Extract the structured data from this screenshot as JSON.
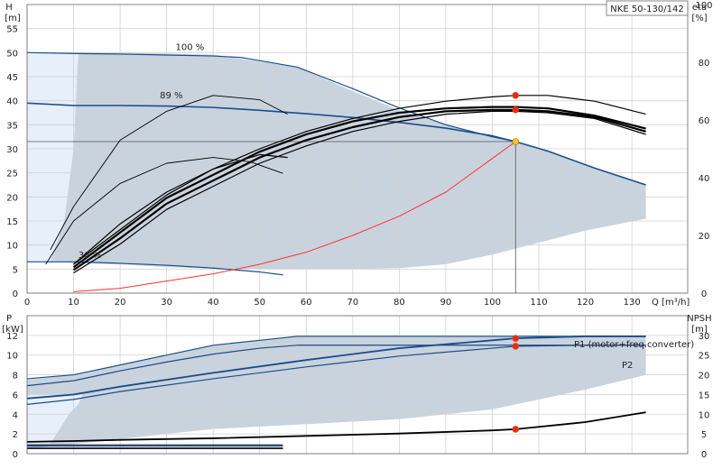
{
  "title_box": "NKE 50-130/142",
  "chart_data": [
    {
      "type": "line",
      "title": "NKE 50-130/142",
      "xlabel": "Q [m³/h]",
      "ylabel": "H [m]",
      "ylabel_line1": "H",
      "ylabel_line2": "[m]",
      "y2label": "eta [%]",
      "y2label_line1": "eta",
      "y2label_line2": "[%]",
      "xlim": [
        0,
        142
      ],
      "ylim": [
        0,
        60
      ],
      "y2lim": [
        0,
        100
      ],
      "xticks": [
        0,
        10,
        20,
        30,
        40,
        50,
        60,
        70,
        80,
        90,
        100,
        110,
        120,
        130
      ],
      "yticks": [
        0,
        5,
        10,
        15,
        20,
        25,
        30,
        35,
        40,
        45,
        50,
        55
      ],
      "y2ticks": [
        0,
        20,
        40,
        60,
        80,
        100
      ],
      "grid": true,
      "annotations": [
        "100 %",
        "89 %",
        "36 %"
      ],
      "operating_point": {
        "x": 105,
        "y": 31.5
      },
      "series": [
        {
          "kind": "region",
          "color": "#c8d3de",
          "x": [
            11,
            20,
            40,
            58,
            70,
            80,
            90,
            100,
            105,
            112,
            122,
            133,
            133,
            120,
            110,
            100,
            90,
            80,
            70,
            55,
            45,
            30,
            20,
            10,
            5
          ],
          "y": [
            50,
            50,
            49.6,
            47,
            42,
            38,
            35,
            32.5,
            31.5,
            29.5,
            26,
            22.5,
            15.5,
            13,
            10.5,
            8,
            6,
            5.2,
            5,
            5,
            5,
            5.4,
            6,
            6.3,
            6.5
          ]
        },
        {
          "kind": "region",
          "color": "#e6effa",
          "x": [
            0,
            11,
            10,
            8,
            5,
            0
          ],
          "y": [
            50,
            50,
            30,
            15,
            6.5,
            6.5
          ]
        },
        {
          "kind": "curve",
          "color": "#1c4c8c",
          "width": 1.2,
          "x": [
            0,
            11,
            20,
            30,
            40,
            46,
            58
          ],
          "y": [
            50,
            49.8,
            49.7,
            49.5,
            49.3,
            49,
            47
          ]
        },
        {
          "kind": "curve",
          "color": "#1c4c8c",
          "width": 1.2,
          "x": [
            58,
            70,
            80,
            90,
            100,
            105
          ],
          "y": [
            47,
            42.5,
            38.5,
            35,
            32.5,
            31.5
          ]
        },
        {
          "kind": "curve",
          "color": "#1c4c8c",
          "width": 1.6,
          "x": [
            0,
            10,
            20,
            30,
            40,
            50,
            60,
            70,
            80,
            90,
            100,
            105,
            112,
            122,
            133
          ],
          "y": [
            39.5,
            39,
            39,
            38.9,
            38.6,
            38,
            37.3,
            36.5,
            35.5,
            34.3,
            32.7,
            31.5,
            29.5,
            26,
            22.5
          ]
        },
        {
          "kind": "curve",
          "color": "#1c4c8c",
          "width": 1.2,
          "x": [
            0,
            10,
            20,
            30,
            40,
            45,
            50,
            55
          ],
          "y": [
            6.5,
            6.5,
            6.2,
            5.8,
            5.2,
            4.8,
            4.4,
            3.8
          ]
        },
        {
          "kind": "curve",
          "color": "#ff3333",
          "width": 1,
          "x": [
            10,
            20,
            30,
            40,
            50,
            60,
            70,
            80,
            90,
            100,
            105
          ],
          "y": [
            0.3,
            1,
            2.5,
            4,
            6,
            8.5,
            12,
            16,
            21,
            28,
            31.5
          ]
        },
        {
          "kind": "curve",
          "color": "#555555",
          "width": 0.8,
          "x": [
            105,
            105
          ],
          "y": [
            0,
            31.5
          ]
        },
        {
          "kind": "curve",
          "color": "#555555",
          "width": 0.8,
          "x": [
            0,
            105
          ],
          "y": [
            31.5,
            31.5
          ]
        },
        {
          "kind": "curve",
          "color": "#000000",
          "width": 2.2,
          "axis": "right",
          "x": [
            10,
            20,
            30,
            40,
            50,
            60,
            70,
            80,
            90,
            100,
            105,
            112,
            122,
            133
          ],
          "y": [
            9,
            21,
            33,
            41,
            49,
            55,
            59.5,
            62.5,
            64,
            64.5,
            64.5,
            64,
            61.5,
            57
          ]
        },
        {
          "kind": "curve",
          "color": "#000000",
          "width": 2.2,
          "axis": "right",
          "x": [
            10,
            20,
            30,
            40,
            50,
            60,
            70,
            80,
            90,
            100,
            105,
            112,
            122,
            133
          ],
          "y": [
            8,
            19,
            31,
            39,
            47,
            53,
            57.5,
            61,
            63,
            63.5,
            63.5,
            63,
            61,
            56
          ]
        },
        {
          "kind": "curve",
          "color": "#000000",
          "width": 1.2,
          "axis": "right",
          "x": [
            10,
            20,
            30,
            40,
            50,
            60,
            70,
            80,
            90,
            100,
            105,
            112,
            122,
            133
          ],
          "y": [
            10,
            22,
            34,
            43,
            50,
            56,
            60.5,
            64,
            66.5,
            68,
            68.5,
            68.5,
            66.5,
            62
          ]
        },
        {
          "kind": "curve",
          "color": "#000000",
          "width": 1.2,
          "axis": "right",
          "x": [
            10,
            20,
            30,
            40,
            50,
            60,
            70,
            80,
            90,
            100,
            105,
            112,
            122,
            133
          ],
          "y": [
            7,
            17,
            29,
            37,
            45,
            51,
            56,
            59.5,
            62,
            63,
            63,
            62.5,
            60.5,
            55
          ]
        },
        {
          "kind": "curve",
          "color": "#000000",
          "width": 0.9,
          "axis": "right",
          "x": [
            4,
            10,
            20,
            30,
            40,
            48,
            55
          ],
          "y": [
            10,
            25,
            38,
            45,
            47,
            45.5,
            41.5
          ]
        },
        {
          "kind": "curve",
          "color": "#000000",
          "width": 0.9,
          "axis": "right",
          "x": [
            5,
            10,
            20,
            30,
            40,
            50,
            56
          ],
          "y": [
            15,
            30,
            53,
            63,
            68.5,
            67,
            62
          ]
        },
        {
          "kind": "curve",
          "color": "#000000",
          "width": 1.2,
          "axis": "right",
          "x": [
            10,
            20,
            30,
            40,
            50,
            56
          ],
          "y": [
            10,
            24,
            35,
            43,
            48,
            47
          ]
        }
      ],
      "points": [
        {
          "x": 105,
          "y": 31.5,
          "axis": "left",
          "color": "#f2c230"
        },
        {
          "x": 105,
          "y": 68.5,
          "axis": "right",
          "color": "#ff2222"
        },
        {
          "x": 105,
          "y": 63.5,
          "axis": "right",
          "color": "#ff2222"
        }
      ]
    },
    {
      "type": "line",
      "xlabel": "",
      "ylabel": "P [kW]",
      "ylabel_line1": "P",
      "ylabel_line2": "[kW]",
      "y2label": "NPSH [m]",
      "y2label_line1": "NPSH",
      "y2label_line2": "[m]",
      "xlim": [
        0,
        142
      ],
      "ylim": [
        0,
        14
      ],
      "y2lim": [
        0,
        35
      ],
      "yticks": [
        0,
        2,
        4,
        6,
        8,
        10,
        12
      ],
      "y2ticks": [
        0,
        5,
        10,
        15,
        20,
        25,
        30
      ],
      "grid": true,
      "series": [
        {
          "kind": "region",
          "color": "#c8d3de",
          "x": [
            0,
            10,
            20,
            30,
            40,
            50,
            58,
            80,
            100,
            120,
            133,
            133,
            120,
            100,
            80,
            60,
            40,
            30,
            20,
            15,
            10,
            0
          ],
          "y": [
            7.5,
            8,
            9,
            10,
            11,
            11.5,
            12,
            12,
            12,
            12,
            12,
            8,
            6.5,
            4.5,
            3.5,
            3,
            2.5,
            2,
            1.5,
            1.2,
            1,
            0.5
          ]
        },
        {
          "kind": "region",
          "color": "#e6effa",
          "x": [
            0,
            12,
            11,
            9,
            5,
            0
          ],
          "y": [
            6,
            6,
            5,
            4,
            1,
            1
          ]
        },
        {
          "kind": "curve",
          "color": "#1c4c8c",
          "width": 1.2,
          "x": [
            0,
            10,
            20,
            30,
            40,
            50,
            58,
            80,
            100,
            120,
            133
          ],
          "y": [
            7.6,
            8,
            9,
            10,
            11,
            11.5,
            11.9,
            11.9,
            11.9,
            11.9,
            11.9
          ]
        },
        {
          "kind": "curve",
          "color": "#1c4c8c",
          "width": 1.2,
          "x": [
            0,
            10,
            20,
            30,
            40,
            50,
            58,
            80,
            100,
            120,
            133
          ],
          "y": [
            6.9,
            7.4,
            8.4,
            9.3,
            10.1,
            10.7,
            11,
            11,
            11,
            11,
            11
          ]
        },
        {
          "kind": "curve",
          "color": "#1c4c8c",
          "width": 1.8,
          "x": [
            0,
            10,
            20,
            40,
            60,
            80,
            100,
            105,
            120,
            133
          ],
          "y": [
            5.6,
            6,
            6.8,
            8.2,
            9.5,
            10.7,
            11.5,
            11.7,
            11.9,
            11.9
          ]
        },
        {
          "kind": "curve",
          "color": "#1c4c8c",
          "width": 1.2,
          "x": [
            0,
            10,
            20,
            40,
            60,
            80,
            100,
            105,
            120,
            133
          ],
          "y": [
            5,
            5.5,
            6.3,
            7.6,
            8.8,
            9.9,
            10.7,
            10.9,
            11,
            11
          ]
        },
        {
          "kind": "curve",
          "color": "#1c4c8c",
          "width": 1.2,
          "x": [
            0,
            55
          ],
          "y": [
            0.9,
            0.9
          ]
        },
        {
          "kind": "curve",
          "color": "#1c4c8c",
          "width": 1.2,
          "x": [
            0,
            55
          ],
          "y": [
            0.6,
            0.6
          ]
        },
        {
          "kind": "curve",
          "color": "#000000",
          "width": 1.8,
          "axis": "right",
          "x": [
            0,
            10,
            20,
            40,
            60,
            80,
            100,
            105,
            120,
            133
          ],
          "y": [
            3,
            3.2,
            3.5,
            3.9,
            4.5,
            5.1,
            5.9,
            6.2,
            8,
            10.5
          ]
        },
        {
          "kind": "curve",
          "color": "#000000",
          "width": 1,
          "axis": "right",
          "x": [
            0,
            55
          ],
          "y": [
            2,
            2
          ]
        },
        {
          "kind": "curve",
          "color": "#000000",
          "width": 1,
          "axis": "right",
          "x": [
            0,
            55
          ],
          "y": [
            1.3,
            1.3
          ]
        }
      ],
      "points": [
        {
          "x": 105,
          "y": 11.7,
          "axis": "left",
          "color": "#ff2222"
        },
        {
          "x": 105,
          "y": 10.9,
          "axis": "left",
          "color": "#ff2222"
        },
        {
          "x": 105,
          "y": 6.2,
          "axis": "right",
          "color": "#ff2222"
        }
      ],
      "labels": [
        {
          "text": "P1 (motor+freq.converter)",
          "color": "#1c4c8c"
        },
        {
          "text": "P2",
          "color": "#1c4c8c"
        }
      ]
    }
  ]
}
